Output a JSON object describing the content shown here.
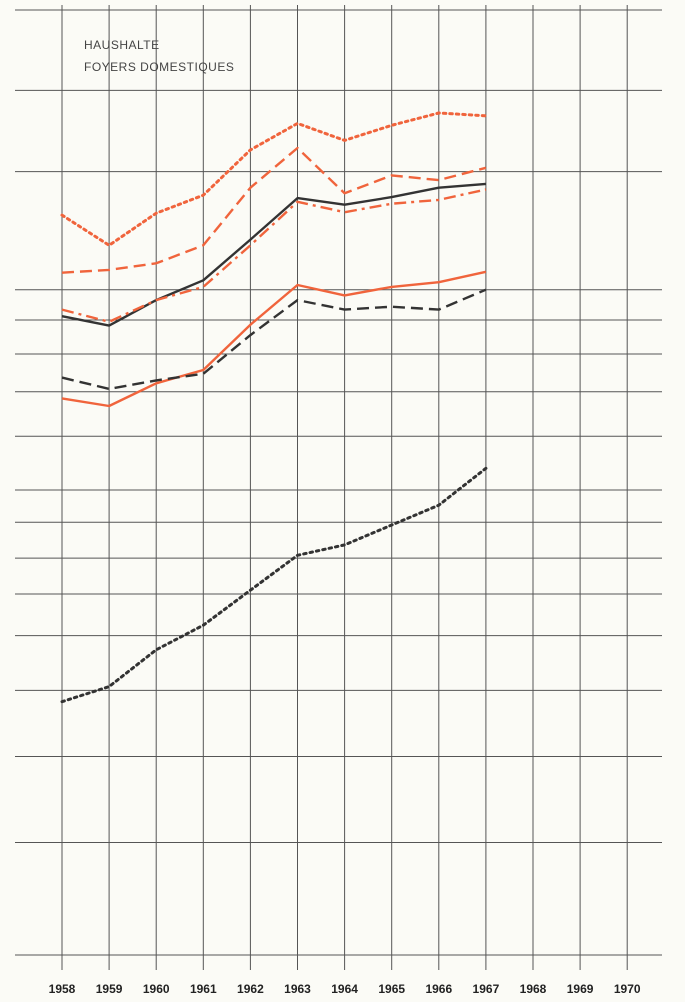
{
  "chart_data": {
    "type": "line",
    "title": "HAUSHALTE",
    "subtitle": "FOYERS DOMESTIQUES",
    "categories": [
      "1958",
      "1959",
      "1960",
      "1961",
      "1962",
      "1963",
      "1964",
      "1965",
      "1966",
      "1967",
      "1968",
      "1969",
      "1970"
    ],
    "ylim": [
      0,
      100
    ],
    "ygrid": [
      100,
      91.5,
      82.9,
      70.4,
      67.2,
      63.6,
      59.6,
      54.9,
      49.2,
      45.8,
      42.0,
      38.2,
      33.8,
      28.0,
      21.0,
      11.9,
      0
    ],
    "series": [
      {
        "color": "#f0643c",
        "dash": "dotted",
        "values": [
          78.3,
          75.1,
          78.5,
          80.4,
          85.2,
          88.0,
          86.2,
          87.8,
          89.1,
          88.8,
          null,
          null,
          null
        ]
      },
      {
        "color": "#f0643c",
        "dash": "dashed",
        "values": [
          72.2,
          72.5,
          73.2,
          75.1,
          81.2,
          85.4,
          80.6,
          82.5,
          82.0,
          83.3,
          null,
          null,
          null
        ]
      },
      {
        "color": "#333333",
        "dash": "solid",
        "values": [
          67.6,
          66.6,
          69.3,
          71.4,
          75.7,
          80.1,
          79.4,
          80.2,
          81.2,
          81.6,
          null,
          null,
          null
        ]
      },
      {
        "color": "#f0643c",
        "dash": "dashdot",
        "values": [
          68.3,
          67.0,
          69.3,
          70.7,
          75.1,
          79.7,
          78.6,
          79.5,
          79.9,
          81.0,
          null,
          null,
          null
        ]
      },
      {
        "color": "#f0643c",
        "dash": "solid",
        "values": [
          58.9,
          58.1,
          60.5,
          61.9,
          66.7,
          70.9,
          69.8,
          70.7,
          71.2,
          72.3,
          null,
          null,
          null
        ]
      },
      {
        "color": "#333333",
        "dash": "dashed",
        "values": [
          61.1,
          59.9,
          60.8,
          61.5,
          65.6,
          69.3,
          68.3,
          68.6,
          68.3,
          70.4,
          null,
          null,
          null
        ]
      },
      {
        "color": "#333333",
        "dash": "dotted",
        "values": [
          26.8,
          28.4,
          32.3,
          34.9,
          38.6,
          42.3,
          43.4,
          45.5,
          47.6,
          51.5,
          null,
          null,
          null
        ]
      }
    ]
  }
}
